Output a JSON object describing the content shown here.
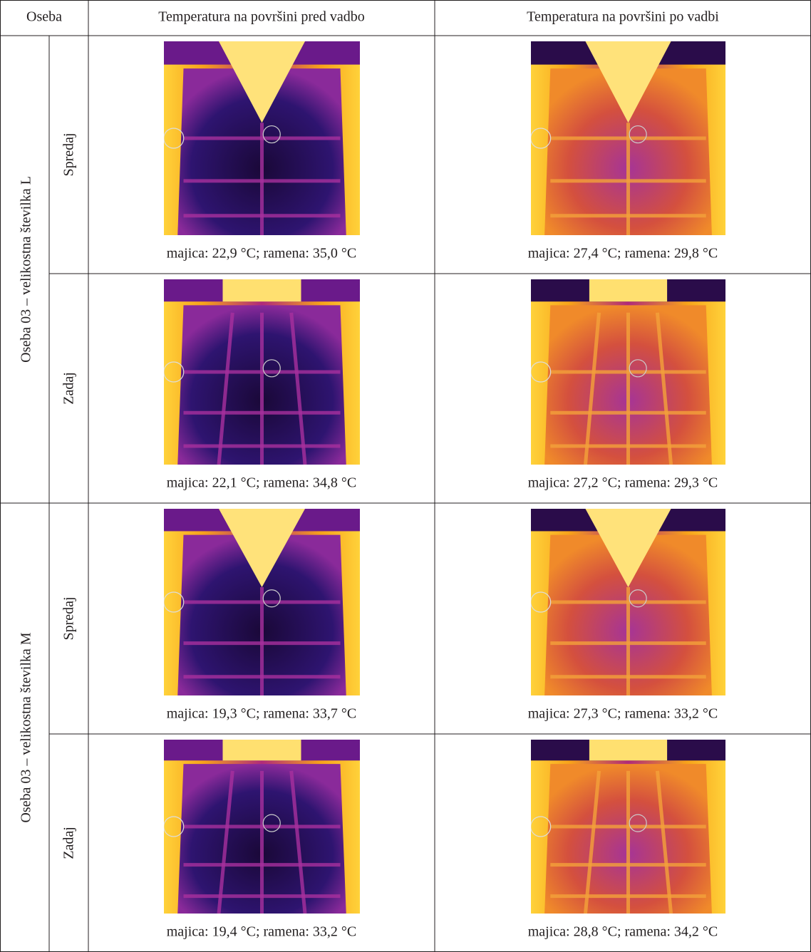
{
  "table": {
    "header": [
      "Oseba",
      "Temperatura na površini pred vadbo",
      "Temperatura na površini po vadbi"
    ],
    "groups": [
      {
        "label": "Oseba 03 – velikostna številka L",
        "rows": [
          {
            "view": "Spredaj",
            "captions": [
              "majica: 22,9 °C; ramena: 35,0 °C",
              "majica: 27,4 °C; ramena: 29,8 °C"
            ]
          },
          {
            "view": "Zadaj",
            "captions": [
              "majica: 22,1 °C; ramena: 34,8 °C",
              "majica: 27,2 °C; ramena: 29,3 °C"
            ]
          }
        ]
      },
      {
        "label": "Oseba 03 – velikostna številka M",
        "rows": [
          {
            "view": "Spredaj",
            "captions": [
              "majica: 19,3 °C; ramena: 33,7 °C",
              "majica: 27,3 °C; ramena: 33,2 °C"
            ]
          },
          {
            "view": "Zadaj",
            "captions": [
              "majica: 19,4 °C; ramena: 33,2 °C",
              "majica: 28,8 °C; ramena: 34,2 °C"
            ]
          }
        ]
      }
    ]
  }
}
